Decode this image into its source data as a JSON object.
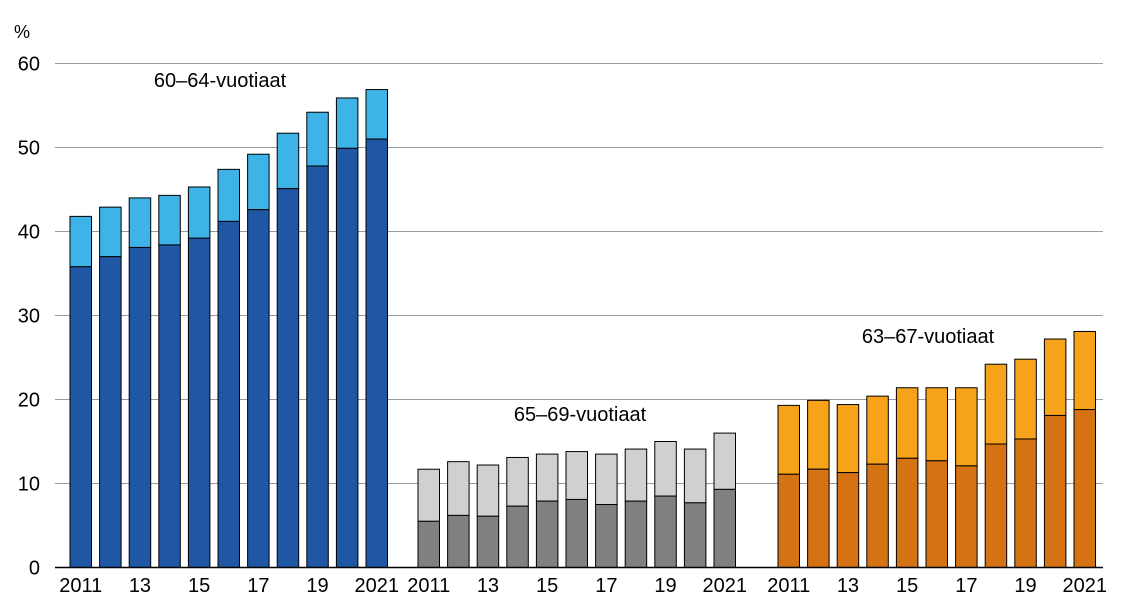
{
  "chart_data": {
    "type": "bar",
    "stacked": true,
    "unit_label": "%",
    "ylim": [
      0,
      60
    ],
    "yticks": [
      0,
      10,
      20,
      30,
      40,
      50,
      60
    ],
    "grid": true,
    "groups": [
      {
        "label": "60–64-vuotiaat",
        "x": [
          2011,
          2012,
          2013,
          2014,
          2015,
          2016,
          2017,
          2018,
          2019,
          2020,
          2021
        ],
        "x_tick_labels": [
          "2011",
          "",
          "13",
          "",
          "15",
          "",
          "17",
          "",
          "19",
          "",
          "2021"
        ],
        "colors": {
          "bottom": "#1f57a5",
          "top": "#3db3e8"
        },
        "bottom": [
          35.8,
          37.0,
          38.1,
          38.4,
          39.2,
          41.2,
          42.6,
          45.1,
          47.8,
          49.9,
          51.0
        ],
        "total": [
          41.8,
          42.9,
          44.0,
          44.3,
          45.3,
          47.4,
          49.2,
          51.7,
          54.2,
          55.9,
          56.9
        ]
      },
      {
        "label": "65–69-vuotiaat",
        "x": [
          2011,
          2012,
          2013,
          2014,
          2015,
          2016,
          2017,
          2018,
          2019,
          2020,
          2021
        ],
        "x_tick_labels": [
          "2011",
          "",
          "13",
          "",
          "15",
          "",
          "17",
          "",
          "19",
          "",
          "2021"
        ],
        "colors": {
          "bottom": "#808080",
          "top": "#d0d0d0"
        },
        "bottom": [
          5.5,
          6.2,
          6.1,
          7.3,
          7.9,
          8.1,
          7.5,
          7.9,
          8.5,
          7.7,
          9.3
        ],
        "total": [
          11.7,
          12.6,
          12.2,
          13.1,
          13.5,
          13.8,
          13.5,
          14.1,
          15.0,
          14.1,
          16.0
        ]
      },
      {
        "label": "63–67-vuotiaat",
        "x": [
          2011,
          2012,
          2013,
          2014,
          2015,
          2016,
          2017,
          2018,
          2019,
          2020,
          2021
        ],
        "x_tick_labels": [
          "2011",
          "",
          "13",
          "",
          "15",
          "",
          "17",
          "",
          "19",
          "",
          "2021"
        ],
        "colors": {
          "bottom": "#d47214",
          "top": "#f7a21b"
        },
        "bottom": [
          11.1,
          11.7,
          11.3,
          12.3,
          13.0,
          12.7,
          12.1,
          14.7,
          15.3,
          18.1,
          18.8
        ],
        "total": [
          19.3,
          19.9,
          19.4,
          20.4,
          21.4,
          21.4,
          21.4,
          24.2,
          24.8,
          27.2,
          28.1
        ]
      }
    ]
  }
}
